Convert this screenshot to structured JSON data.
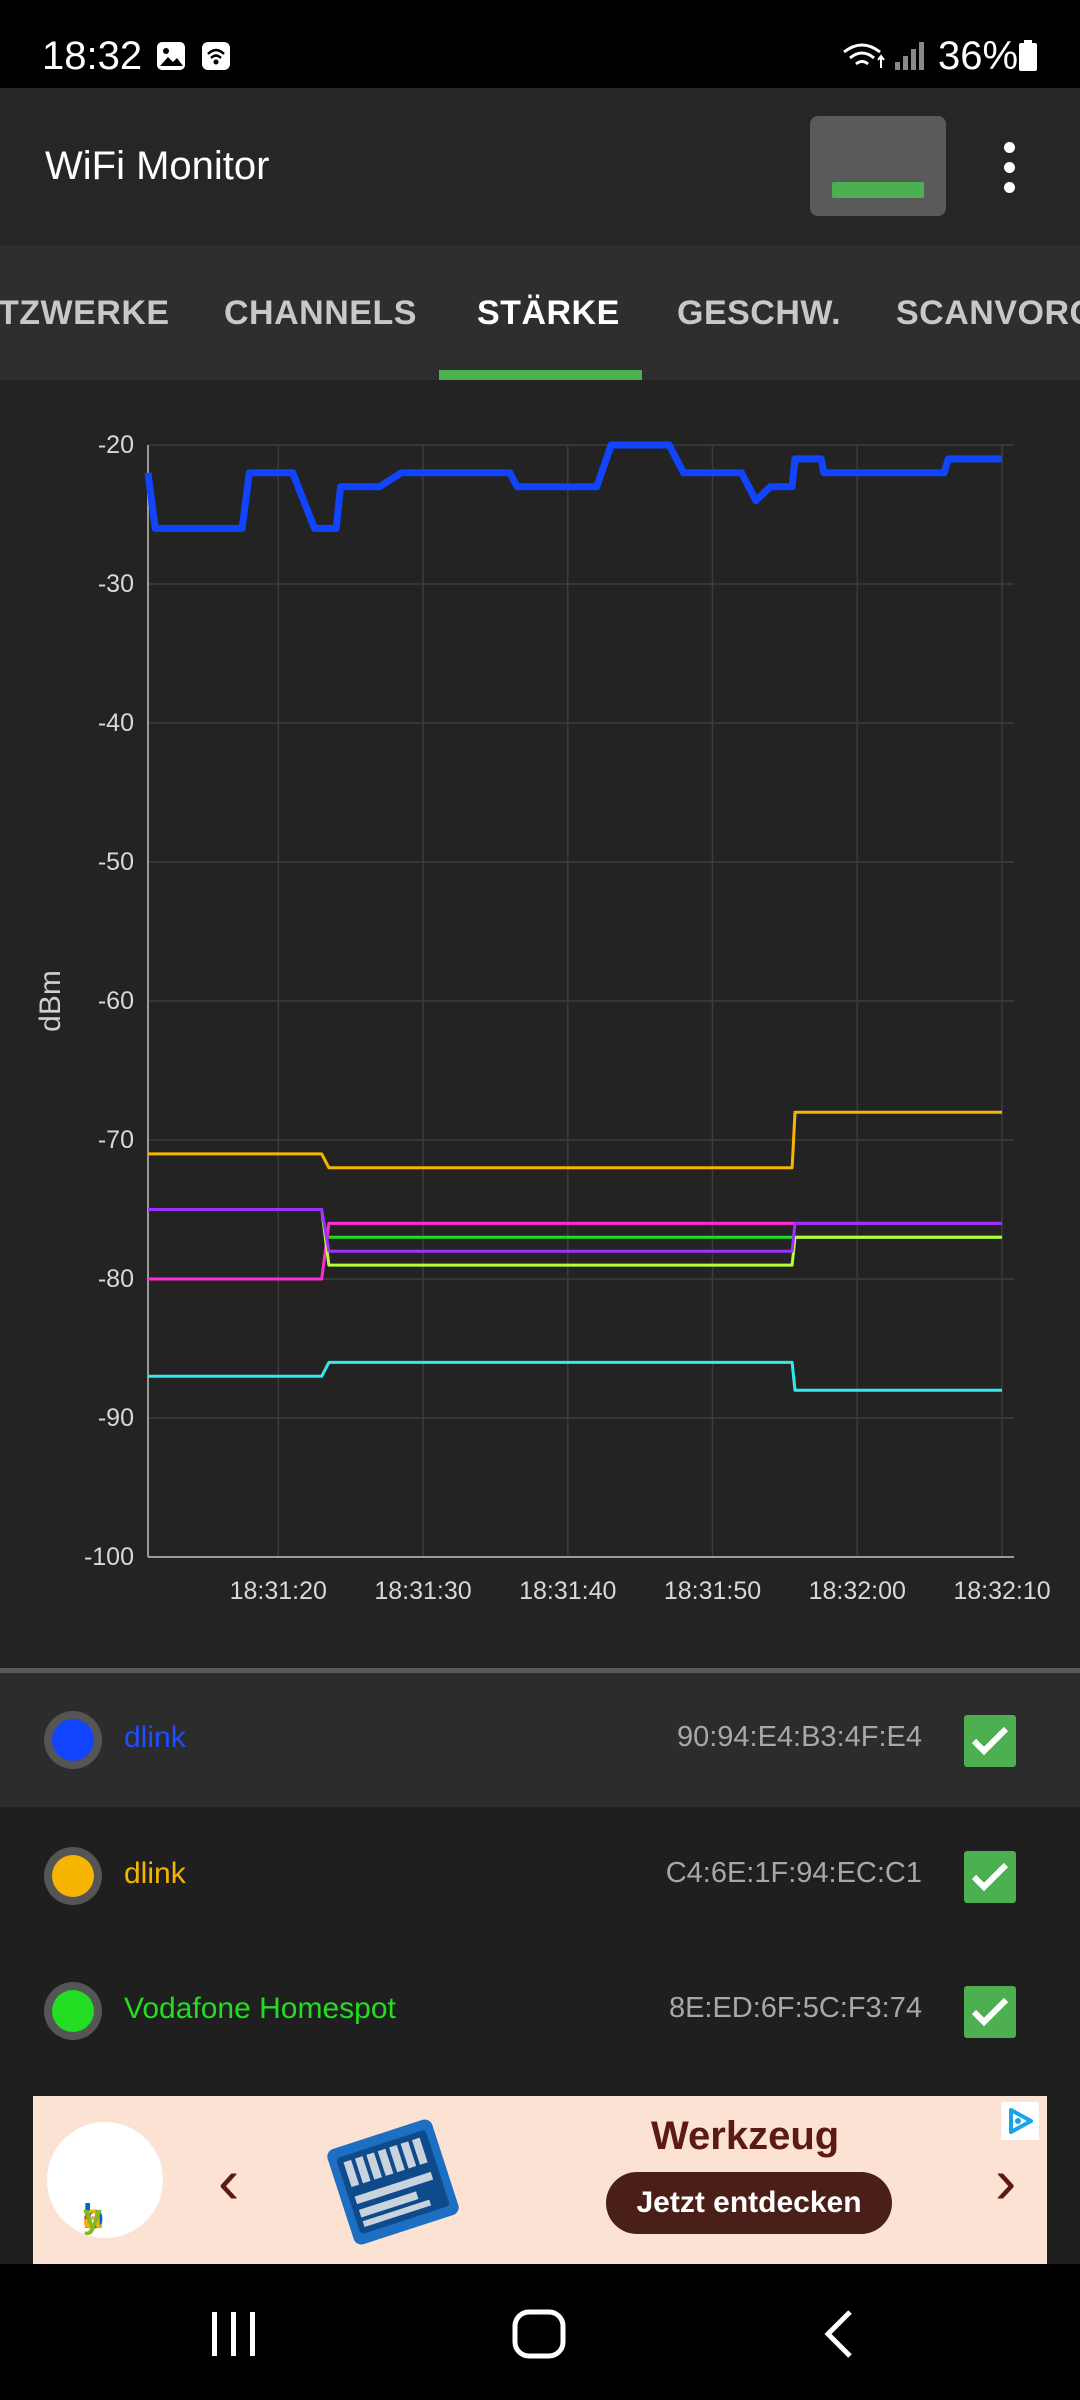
{
  "status_bar": {
    "time": "18:32",
    "battery": "36%",
    "icons": [
      "gallery-icon",
      "wifi-notification-icon",
      "wifi-signal-icon",
      "cell-signal-icon",
      "battery-icon"
    ]
  },
  "app_bar": {
    "title": "WiFi Monitor",
    "action_icon": "signal-bar-icon",
    "menu_icon": "more-vert-icon"
  },
  "tabs": [
    {
      "label": "NETZWERKE",
      "shown": "TZWERKE"
    },
    {
      "label": "CHANNELS"
    },
    {
      "label": "STÄRKE",
      "active": true
    },
    {
      "label": "GESCHW."
    },
    {
      "label": "SCANVORG"
    }
  ],
  "colors": {
    "accent": "#4caf50",
    "blue": "#1144ff",
    "yellow": "#f7b500",
    "green": "#22dd22",
    "magenta": "#ff2bd6",
    "purple": "#9b30ff",
    "lime": "#b8ff3a",
    "cyan": "#34e8f0"
  },
  "chart_data": {
    "type": "line",
    "ylabel": "dBm",
    "xlabel": "",
    "ylim": [
      -100,
      -20
    ],
    "xlim": [
      "18:31:11",
      "18:32:10"
    ],
    "y_ticks": [
      "-20",
      "-30",
      "-40",
      "-50",
      "-60",
      "-70",
      "-80",
      "-90",
      "-100"
    ],
    "x_ticks": [
      "18:31:20",
      "18:31:30",
      "18:31:40",
      "18:31:50",
      "18:32:00",
      "18:32:10"
    ],
    "grid": true,
    "series": [
      {
        "color": "#1144ff",
        "width": 7,
        "points": [
          [
            "18:31:11",
            -22
          ],
          [
            "18:31:11.5",
            -26
          ],
          [
            "18:31:17.5",
            -26
          ],
          [
            "18:31:18",
            -22
          ],
          [
            "18:31:21",
            -22
          ],
          [
            "18:31:22.5",
            -26
          ],
          [
            "18:31:24",
            -26
          ],
          [
            "18:31:24.3",
            -23
          ],
          [
            "18:31:27",
            -23
          ],
          [
            "18:31:28.5",
            -22
          ],
          [
            "18:31:36",
            -22
          ],
          [
            "18:31:36.5",
            -23
          ],
          [
            "18:31:42",
            -23
          ],
          [
            "18:31:43",
            -20
          ],
          [
            "18:31:47",
            -20
          ],
          [
            "18:31:48",
            -22
          ],
          [
            "18:31:52",
            -22
          ],
          [
            "18:31:53",
            -24
          ],
          [
            "18:31:54",
            -23
          ],
          [
            "18:31:55.5",
            -23
          ],
          [
            "18:31:55.7",
            -21
          ],
          [
            "18:31:57.5",
            -21
          ],
          [
            "18:31:57.7",
            -22
          ],
          [
            "18:32:06",
            -22
          ],
          [
            "18:32:06.3",
            -21
          ],
          [
            "18:32:10",
            -21
          ]
        ]
      },
      {
        "color": "#f7b500",
        "width": 3,
        "points": [
          [
            "18:31:11",
            -71
          ],
          [
            "18:31:23",
            -71
          ],
          [
            "18:31:23.5",
            -72
          ],
          [
            "18:31:55.5",
            -72
          ],
          [
            "18:31:55.7",
            -68
          ],
          [
            "18:32:10",
            -68
          ]
        ]
      },
      {
        "color": "#ff2bd6",
        "width": 3,
        "points": [
          [
            "18:31:11",
            -80
          ],
          [
            "18:31:23",
            -80
          ],
          [
            "18:31:23.5",
            -76
          ],
          [
            "18:32:10",
            -76
          ]
        ]
      },
      {
        "color": "#22dd22",
        "width": 3,
        "points": [
          [
            "18:31:23.5",
            -77
          ],
          [
            "18:32:10",
            -77
          ]
        ]
      },
      {
        "color": "#b8ff3a",
        "width": 3,
        "points": [
          [
            "18:31:11",
            -75
          ],
          [
            "18:31:23",
            -75
          ],
          [
            "18:31:23.5",
            -79
          ],
          [
            "18:31:55.5",
            -79
          ],
          [
            "18:31:55.7",
            -77
          ],
          [
            "18:32:10",
            -77
          ]
        ]
      },
      {
        "color": "#9b30ff",
        "width": 3,
        "points": [
          [
            "18:31:11",
            -75
          ],
          [
            "18:31:23",
            -75
          ],
          [
            "18:31:23.5",
            -78
          ],
          [
            "18:31:55.5",
            -78
          ],
          [
            "18:31:55.7",
            -76
          ],
          [
            "18:32:10",
            -76
          ]
        ]
      },
      {
        "color": "#34e8f0",
        "width": 3,
        "points": [
          [
            "18:31:11",
            -87
          ],
          [
            "18:31:23",
            -87
          ],
          [
            "18:31:23.5",
            -86
          ],
          [
            "18:31:55.5",
            -86
          ],
          [
            "18:31:55.7",
            -88
          ],
          [
            "18:32:10",
            -88
          ]
        ]
      }
    ]
  },
  "networks": [
    {
      "ssid": "dlink",
      "mac": "90:94:E4:B3:4F:E4",
      "color": "#1144ff",
      "checked": true,
      "selected": true
    },
    {
      "ssid": "dlink",
      "mac": "C4:6E:1F:94:EC:C1",
      "color": "#f7b500",
      "checked": true
    },
    {
      "ssid": "Vodafone Homespot",
      "mac": "8E:ED:6F:5C:F3:74",
      "color": "#22dd22",
      "checked": true
    }
  ],
  "ad": {
    "logo": "ebay",
    "title": "Werkzeug",
    "cta": "Jetzt entdecken",
    "choice_icon": "ad-choices-icon"
  },
  "nav_bar": {
    "icons": [
      "recents-icon",
      "home-icon",
      "back-icon"
    ]
  }
}
